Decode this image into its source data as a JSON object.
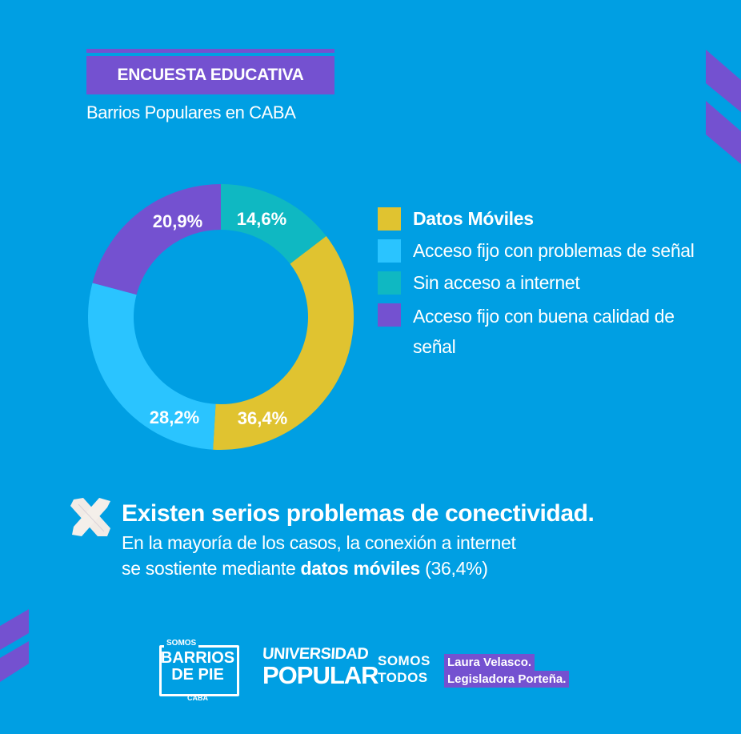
{
  "header": {
    "title": "ENCUESTA EDUCATIVA",
    "subtitle": "Barrios Populares en CABA"
  },
  "colors": {
    "background": "#009fe3",
    "accent_purple": "#7451d0",
    "yellow": "#e0c330",
    "light_blue": "#2ac4ff",
    "teal": "#0fb8c2",
    "purple": "#7451d0"
  },
  "chart_data": {
    "type": "pie",
    "variant": "donut",
    "title": "Barrios Populares en CABA",
    "start_angle_deg": 0,
    "direction": "clockwise",
    "legend_position": "right",
    "slices": [
      {
        "label": "Sin acceso a internet",
        "value": 14.6,
        "display": "14,6%",
        "color": "#0fb8c2"
      },
      {
        "label": "Datos Móviles",
        "value": 36.4,
        "display": "36,4%",
        "color": "#e0c330"
      },
      {
        "label": "Acceso fijo con problemas de señal",
        "value": 28.2,
        "display": "28,2%",
        "color": "#2ac4ff"
      },
      {
        "label": "Acceso fijo con buena calidad de señal",
        "value": 20.9,
        "display": "20,9%",
        "color": "#7451d0"
      }
    ]
  },
  "legend": {
    "items": [
      {
        "label": "Datos Móviles",
        "color": "#e0c330"
      },
      {
        "label": "Acceso fijo con problemas de señal",
        "color": "#2ac4ff"
      },
      {
        "label": "Sin acceso a internet",
        "color": "#0fb8c2"
      },
      {
        "label": "Acceso fijo con buena calidad de señal",
        "color": "#7451d0"
      }
    ]
  },
  "finding": {
    "icon": "x-tape-icon",
    "headline": "Existen serios problemas de conectividad.",
    "body_line1": "En la mayoría de los casos, la conexión a internet",
    "body_line2_pre": "se sostiente mediante ",
    "body_line2_bold": "datos móviles",
    "body_line2_post": " (36,4%)"
  },
  "footer": {
    "barrios_de_pie": {
      "somos": "SOMOS",
      "line1": "BARRIOS",
      "line2": "DE PIE",
      "sub": "CABA"
    },
    "universidad_popular": {
      "line1": "UNIVERSIDAD",
      "line2": "POPULAR"
    },
    "somos_todos": {
      "line1": "SOMOS",
      "line2": "TODOS"
    },
    "laura": {
      "line1": "Laura Velasco.",
      "line2": "Legisladora Porteña."
    }
  }
}
